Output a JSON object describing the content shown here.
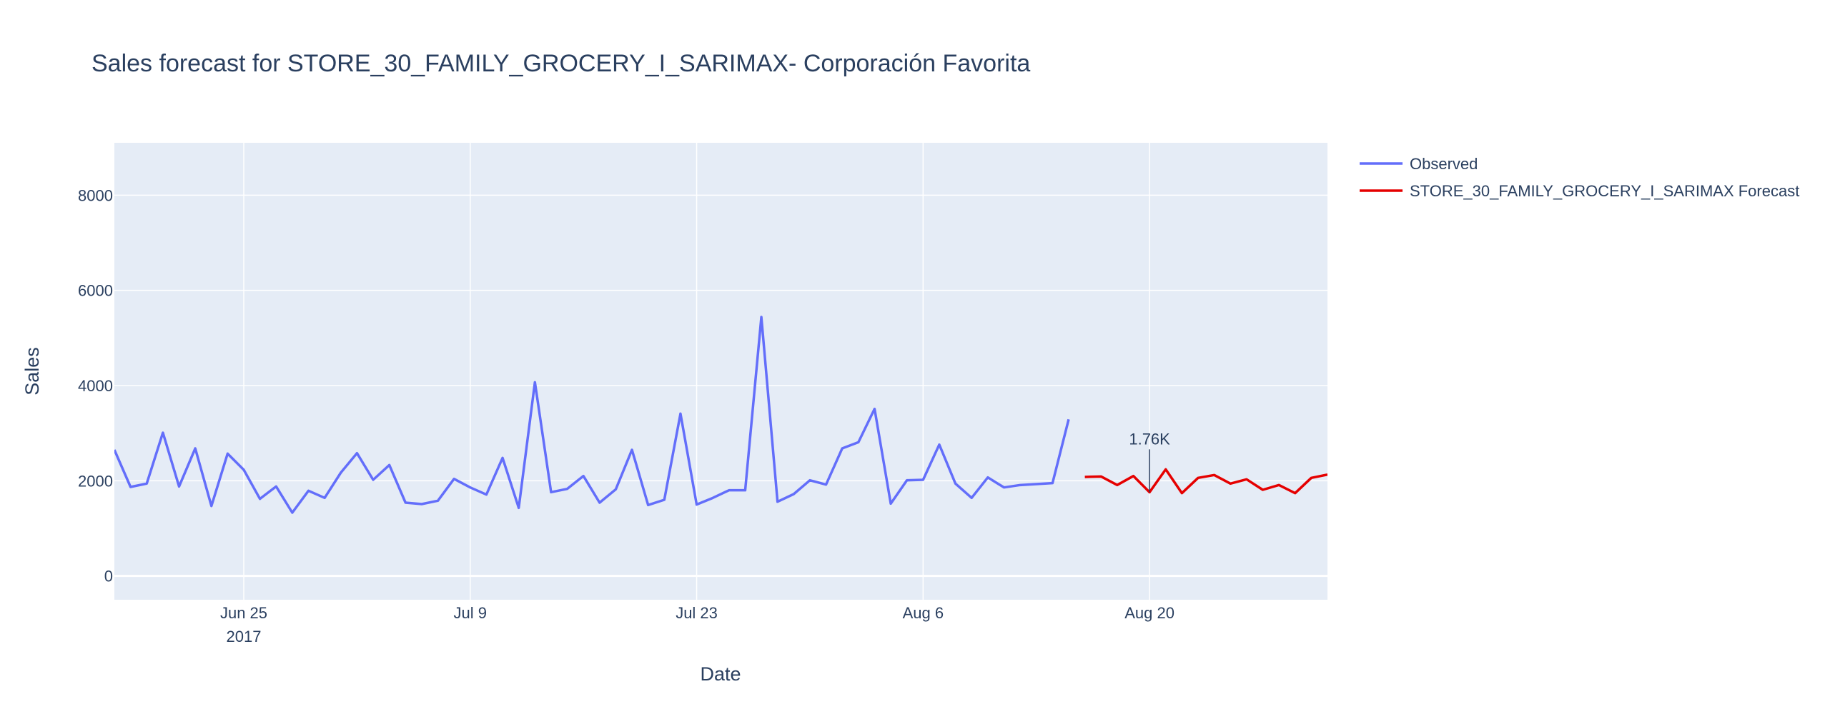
{
  "chart_data": {
    "type": "line",
    "title": "Sales forecast for STORE_30_FAMILY_GROCERY_I_SARIMAX- Corporación Favorita",
    "xlabel": "Date",
    "ylabel": "Sales",
    "xlim": [
      "2017-06-17",
      "2017-08-31"
    ],
    "ylim": [
      -500,
      9100
    ],
    "x_ticks": [
      {
        "date": "2017-06-25",
        "label": "Jun 25",
        "sublabel": "2017"
      },
      {
        "date": "2017-07-09",
        "label": "Jul 9"
      },
      {
        "date": "2017-07-23",
        "label": "Jul 23"
      },
      {
        "date": "2017-08-06",
        "label": "Aug 6"
      },
      {
        "date": "2017-08-20",
        "label": "Aug 20"
      }
    ],
    "y_ticks": [
      0,
      2000,
      4000,
      6000,
      8000
    ],
    "grid": true,
    "legend_position": "right",
    "series": [
      {
        "name": "Observed",
        "color": "#636efa",
        "start_date": "2017-06-17",
        "values": [
          2650,
          1870,
          1940,
          3010,
          1880,
          2680,
          1470,
          2570,
          2230,
          1620,
          1880,
          1330,
          1790,
          1640,
          2170,
          2580,
          2020,
          2330,
          1540,
          1510,
          1580,
          2040,
          1860,
          1710,
          2480,
          1430,
          4070,
          1760,
          1830,
          2100,
          1540,
          1820,
          2650,
          1490,
          1600,
          3410,
          1500,
          1640,
          1800,
          1800,
          5440,
          1560,
          1720,
          2010,
          1920,
          2680,
          2810,
          3510,
          1520,
          2010,
          2020,
          2760,
          1940,
          1640,
          2070,
          1860,
          1910,
          1930,
          1950,
          3290
        ]
      },
      {
        "name": "STORE_30_FAMILY_GROCERY_I_SARIMAX Forecast",
        "color": "#e50000",
        "start_date": "2017-08-16",
        "values": [
          2080,
          2090,
          1910,
          2100,
          1760,
          2240,
          1740,
          2060,
          2120,
          1940,
          2030,
          1810,
          1910,
          1740,
          2060,
          2130
        ]
      }
    ],
    "annotations": [
      {
        "date": "2017-08-20",
        "y": 1760,
        "text": "1.76K"
      }
    ]
  }
}
